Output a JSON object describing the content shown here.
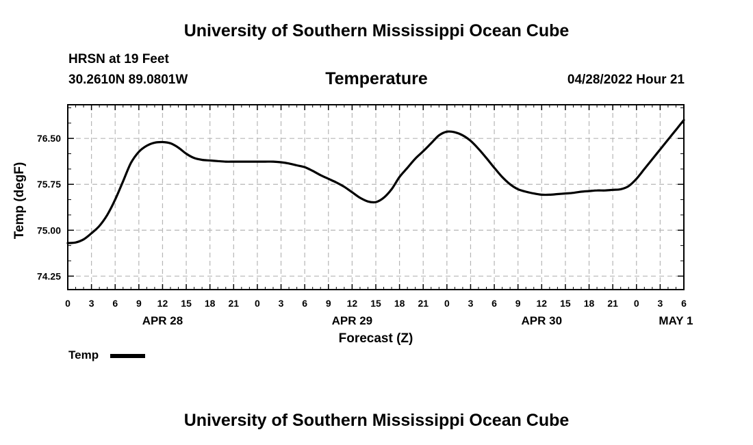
{
  "page": {
    "top_title": "University of Southern Mississippi Ocean Cube",
    "bottom_title": "University of Southern Mississippi Ocean Cube",
    "station_name": "HRSN at 19 Feet",
    "station_coords": "30.2610N  89.0801W",
    "subtitle": "Temperature",
    "timestamp": "04/28/2022 Hour 21"
  },
  "legend": {
    "label": "Temp"
  },
  "chart_data": {
    "type": "line",
    "title": "Temperature",
    "xlabel": "Forecast (Z)",
    "ylabel": "Temp (degF)",
    "x_range_hours": [
      0,
      78
    ],
    "ylim": [
      74.03,
      77.05
    ],
    "y_ticks": [
      74.25,
      75.0,
      75.75,
      76.5
    ],
    "y_tick_labels": [
      "74.25",
      "75.00",
      "75.75",
      "76.50"
    ],
    "x_ticks": [
      0,
      3,
      6,
      9,
      12,
      15,
      18,
      21,
      24,
      27,
      30,
      33,
      36,
      39,
      42,
      45,
      48,
      51,
      54,
      57,
      60,
      63,
      66,
      69,
      72,
      75,
      78
    ],
    "x_tick_labels": [
      "0",
      "3",
      "6",
      "9",
      "12",
      "15",
      "18",
      "21",
      "0",
      "3",
      "6",
      "9",
      "12",
      "15",
      "18",
      "21",
      "0",
      "3",
      "6",
      "9",
      "12",
      "15",
      "18",
      "21",
      "0",
      "3",
      "6"
    ],
    "date_labels": [
      {
        "hour": 12,
        "label": "APR 28"
      },
      {
        "hour": 36,
        "label": "APR 29"
      },
      {
        "hour": 60,
        "label": "APR 30"
      },
      {
        "hour": 77,
        "label": "MAY 1"
      }
    ],
    "grid": true,
    "series": [
      {
        "name": "Temp",
        "color": "#000000",
        "x": [
          0,
          1,
          2,
          3,
          4,
          5,
          6,
          7,
          8,
          9,
          10,
          11,
          12,
          13,
          14,
          15,
          16,
          17,
          18,
          19,
          20,
          21,
          22,
          23,
          24,
          25,
          26,
          27,
          28,
          29,
          30,
          31,
          32,
          33,
          34,
          35,
          36,
          37,
          38,
          39,
          40,
          41,
          42,
          43,
          44,
          45,
          46,
          47,
          48,
          49,
          50,
          51,
          52,
          53,
          54,
          55,
          56,
          57,
          58,
          59,
          60,
          61,
          62,
          63,
          64,
          65,
          66,
          67,
          68,
          69,
          70,
          71,
          72,
          73,
          74,
          75,
          76,
          77,
          78
        ],
        "values": [
          74.79,
          74.8,
          74.85,
          74.95,
          75.07,
          75.25,
          75.5,
          75.8,
          76.1,
          76.28,
          76.38,
          76.43,
          76.44,
          76.42,
          76.35,
          76.25,
          76.18,
          76.15,
          76.14,
          76.13,
          76.12,
          76.12,
          76.12,
          76.12,
          76.12,
          76.12,
          76.12,
          76.11,
          76.09,
          76.06,
          76.03,
          75.97,
          75.9,
          75.84,
          75.78,
          75.71,
          75.62,
          75.53,
          75.47,
          75.46,
          75.53,
          75.67,
          75.87,
          76.02,
          76.17,
          76.29,
          76.42,
          76.55,
          76.61,
          76.6,
          76.55,
          76.46,
          76.33,
          76.18,
          76.02,
          75.87,
          75.75,
          75.67,
          75.63,
          75.6,
          75.58,
          75.58,
          75.59,
          75.6,
          75.61,
          75.63,
          75.64,
          75.65,
          75.65,
          75.66,
          75.67,
          75.72,
          75.84,
          76.0,
          76.16,
          76.32,
          76.48,
          76.64,
          76.8
        ]
      }
    ]
  }
}
